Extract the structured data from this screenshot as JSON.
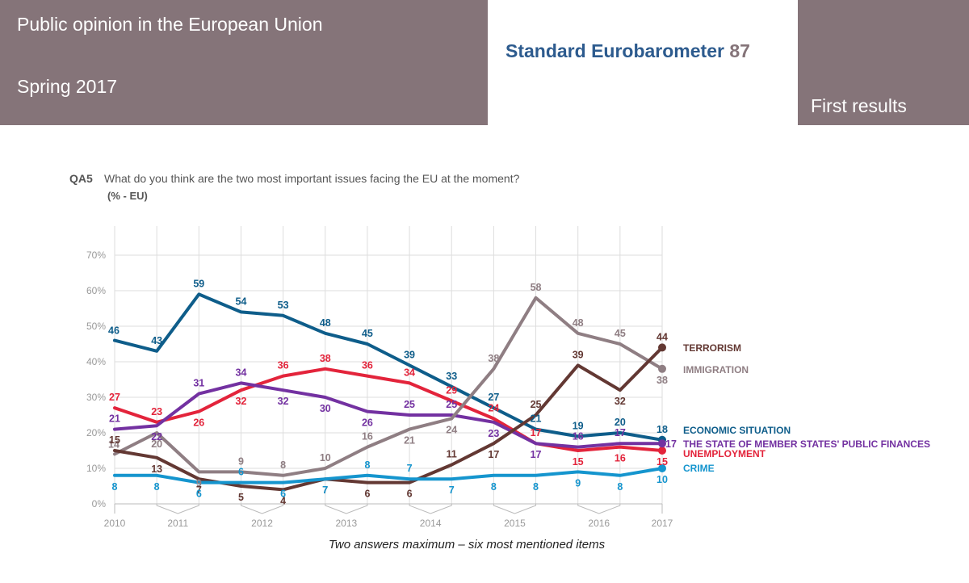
{
  "header": {
    "left_title": "Public opinion in the European Union",
    "season": "Spring 2017",
    "survey_name": "Standard Eurobarometer",
    "survey_number": "87",
    "status": "First results"
  },
  "colors": {
    "header_band": "#857479",
    "survey_name": "#2d5b8e",
    "grid": "#dddddd",
    "axis_text": "#999999"
  },
  "chart_data": {
    "type": "line",
    "question_code": "QA5",
    "title": "What do you think are the two most important issues facing the EU at the moment?",
    "subtitle": "(% - EU)",
    "footnote": "Two answers maximum – six most mentioned items",
    "ylim": [
      0,
      70
    ],
    "y_ticks": [
      "0%",
      "10%",
      "20%",
      "30%",
      "40%",
      "50%",
      "60%",
      "70%"
    ],
    "year_labels": [
      "2010",
      "2011",
      "2012",
      "2013",
      "2014",
      "2015",
      "2016",
      "2017"
    ],
    "waves": 14,
    "series": [
      {
        "name": "ECONOMIC SITUATION",
        "color": "#0e5d8a",
        "values": [
          46,
          43,
          59,
          54,
          53,
          48,
          45,
          39,
          33,
          27,
          21,
          19,
          20,
          18
        ]
      },
      {
        "name": "UNEMPLOYMENT",
        "color": "#e3243b",
        "values": [
          27,
          23,
          26,
          32,
          36,
          38,
          36,
          34,
          29,
          24,
          17,
          15,
          16,
          15
        ]
      },
      {
        "name": "THE STATE OF MEMBER STATES' PUBLIC FINANCES",
        "color": "#7331a1",
        "values": [
          21,
          22,
          31,
          34,
          32,
          30,
          26,
          25,
          25,
          23,
          17,
          16,
          17,
          17
        ]
      },
      {
        "name": "IMMIGRATION",
        "color": "#8f7e83",
        "values": [
          14,
          20,
          9,
          9,
          8,
          10,
          16,
          21,
          24,
          38,
          58,
          48,
          45,
          38
        ]
      },
      {
        "name": "TERRORISM",
        "color": "#633833",
        "values": [
          15,
          13,
          7,
          5,
          4,
          7,
          6,
          6,
          11,
          17,
          25,
          39,
          32,
          44
        ]
      },
      {
        "name": "CRIME",
        "color": "#1595ce",
        "values": [
          8,
          8,
          6,
          6,
          6,
          7,
          8,
          7,
          7,
          8,
          8,
          9,
          8,
          10
        ]
      }
    ]
  }
}
